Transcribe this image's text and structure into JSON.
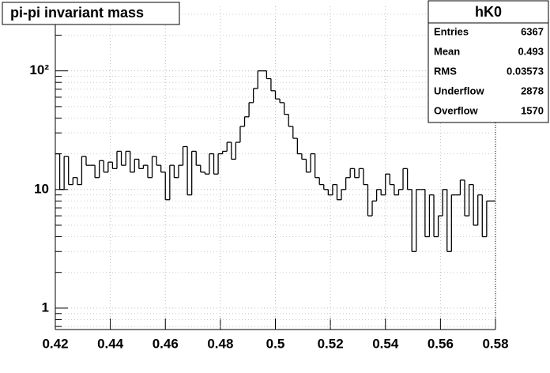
{
  "chart_data": {
    "type": "histogram",
    "title": "pi-pi invariant mass",
    "name": "hK0",
    "stats": [
      {
        "label": "Entries",
        "value": 6367
      },
      {
        "label": "Mean",
        "value": 0.493
      },
      {
        "label": "RMS",
        "value": 0.03573
      },
      {
        "label": "Underflow",
        "value": 2878
      },
      {
        "label": "Overflow",
        "value": 1570
      }
    ],
    "bins": [
      0.42,
      0.4216,
      0.4232,
      0.4248,
      0.4264,
      0.428,
      0.4296,
      0.4312,
      0.4328,
      0.4344,
      0.436,
      0.4376,
      0.4392,
      0.4408,
      0.4424,
      0.444,
      0.4456,
      0.4472,
      0.4488,
      0.4504,
      0.452,
      0.4536,
      0.4552,
      0.4568,
      0.4584,
      0.46,
      0.4616,
      0.4632,
      0.4648,
      0.4664,
      0.468,
      0.4696,
      0.4712,
      0.4728,
      0.4744,
      0.476,
      0.4776,
      0.4792,
      0.4808,
      0.4824,
      0.484,
      0.4856,
      0.4872,
      0.4888,
      0.4904,
      0.492,
      0.4936,
      0.4952,
      0.4968,
      0.4984,
      0.5,
      0.5016,
      0.5032,
      0.5048,
      0.5064,
      0.508,
      0.5096,
      0.5112,
      0.5128,
      0.5144,
      0.516,
      0.5176,
      0.5192,
      0.5208,
      0.5224,
      0.524,
      0.5256,
      0.5272,
      0.5288,
      0.5304,
      0.532,
      0.5336,
      0.5352,
      0.5368,
      0.5384,
      0.54,
      0.5416,
      0.5432,
      0.5448,
      0.5464,
      0.548,
      0.5496,
      0.5512,
      0.5528,
      0.5544,
      0.556,
      0.5576,
      0.5592,
      0.5608,
      0.5624,
      0.564,
      0.5656,
      0.5672,
      0.5688,
      0.5704,
      0.572,
      0.5736,
      0.5752,
      0.5768,
      0.5784,
      0.58
    ],
    "values": [
      20,
      10,
      19,
      11,
      12.6,
      11,
      19,
      16,
      16,
      12.6,
      17.5,
      14,
      17,
      15,
      21,
      16,
      21,
      14,
      18,
      15,
      16,
      12.6,
      19,
      16,
      14,
      8.2,
      16,
      12.6,
      16,
      23,
      9,
      21,
      16,
      14,
      13.5,
      20,
      13.5,
      20,
      21,
      25,
      18,
      25,
      34,
      41,
      54,
      71,
      100,
      100,
      86,
      68,
      58,
      54,
      43,
      34,
      27,
      20,
      18,
      14,
      20,
      12.6,
      11,
      10,
      9,
      11,
      8.2,
      10,
      12.6,
      15,
      12.6,
      15,
      11,
      6,
      8,
      10,
      9,
      13.5,
      11,
      9,
      10,
      15,
      10,
      3,
      10,
      10,
      4,
      9,
      4,
      6,
      10,
      3,
      9,
      9,
      12,
      6,
      11,
      5,
      9,
      4,
      8,
      8
    ],
    "color": "#000000",
    "xlim": [
      0.42,
      0.58
    ],
    "xticks": [
      0.42,
      0.44,
      0.46,
      0.48,
      0.5,
      0.52,
      0.54,
      0.56,
      0.58
    ],
    "ylim": [
      0.66,
      350
    ],
    "log_y": true,
    "yticks": [
      1,
      10,
      {
        "value": 100,
        "label": "10²"
      }
    ],
    "yminorticks": [
      0.7,
      0.8,
      0.9,
      2,
      3,
      4,
      5,
      6,
      7,
      8,
      9,
      20,
      30,
      40,
      50,
      60,
      70,
      80,
      90,
      200,
      300
    ],
    "grid": true
  }
}
